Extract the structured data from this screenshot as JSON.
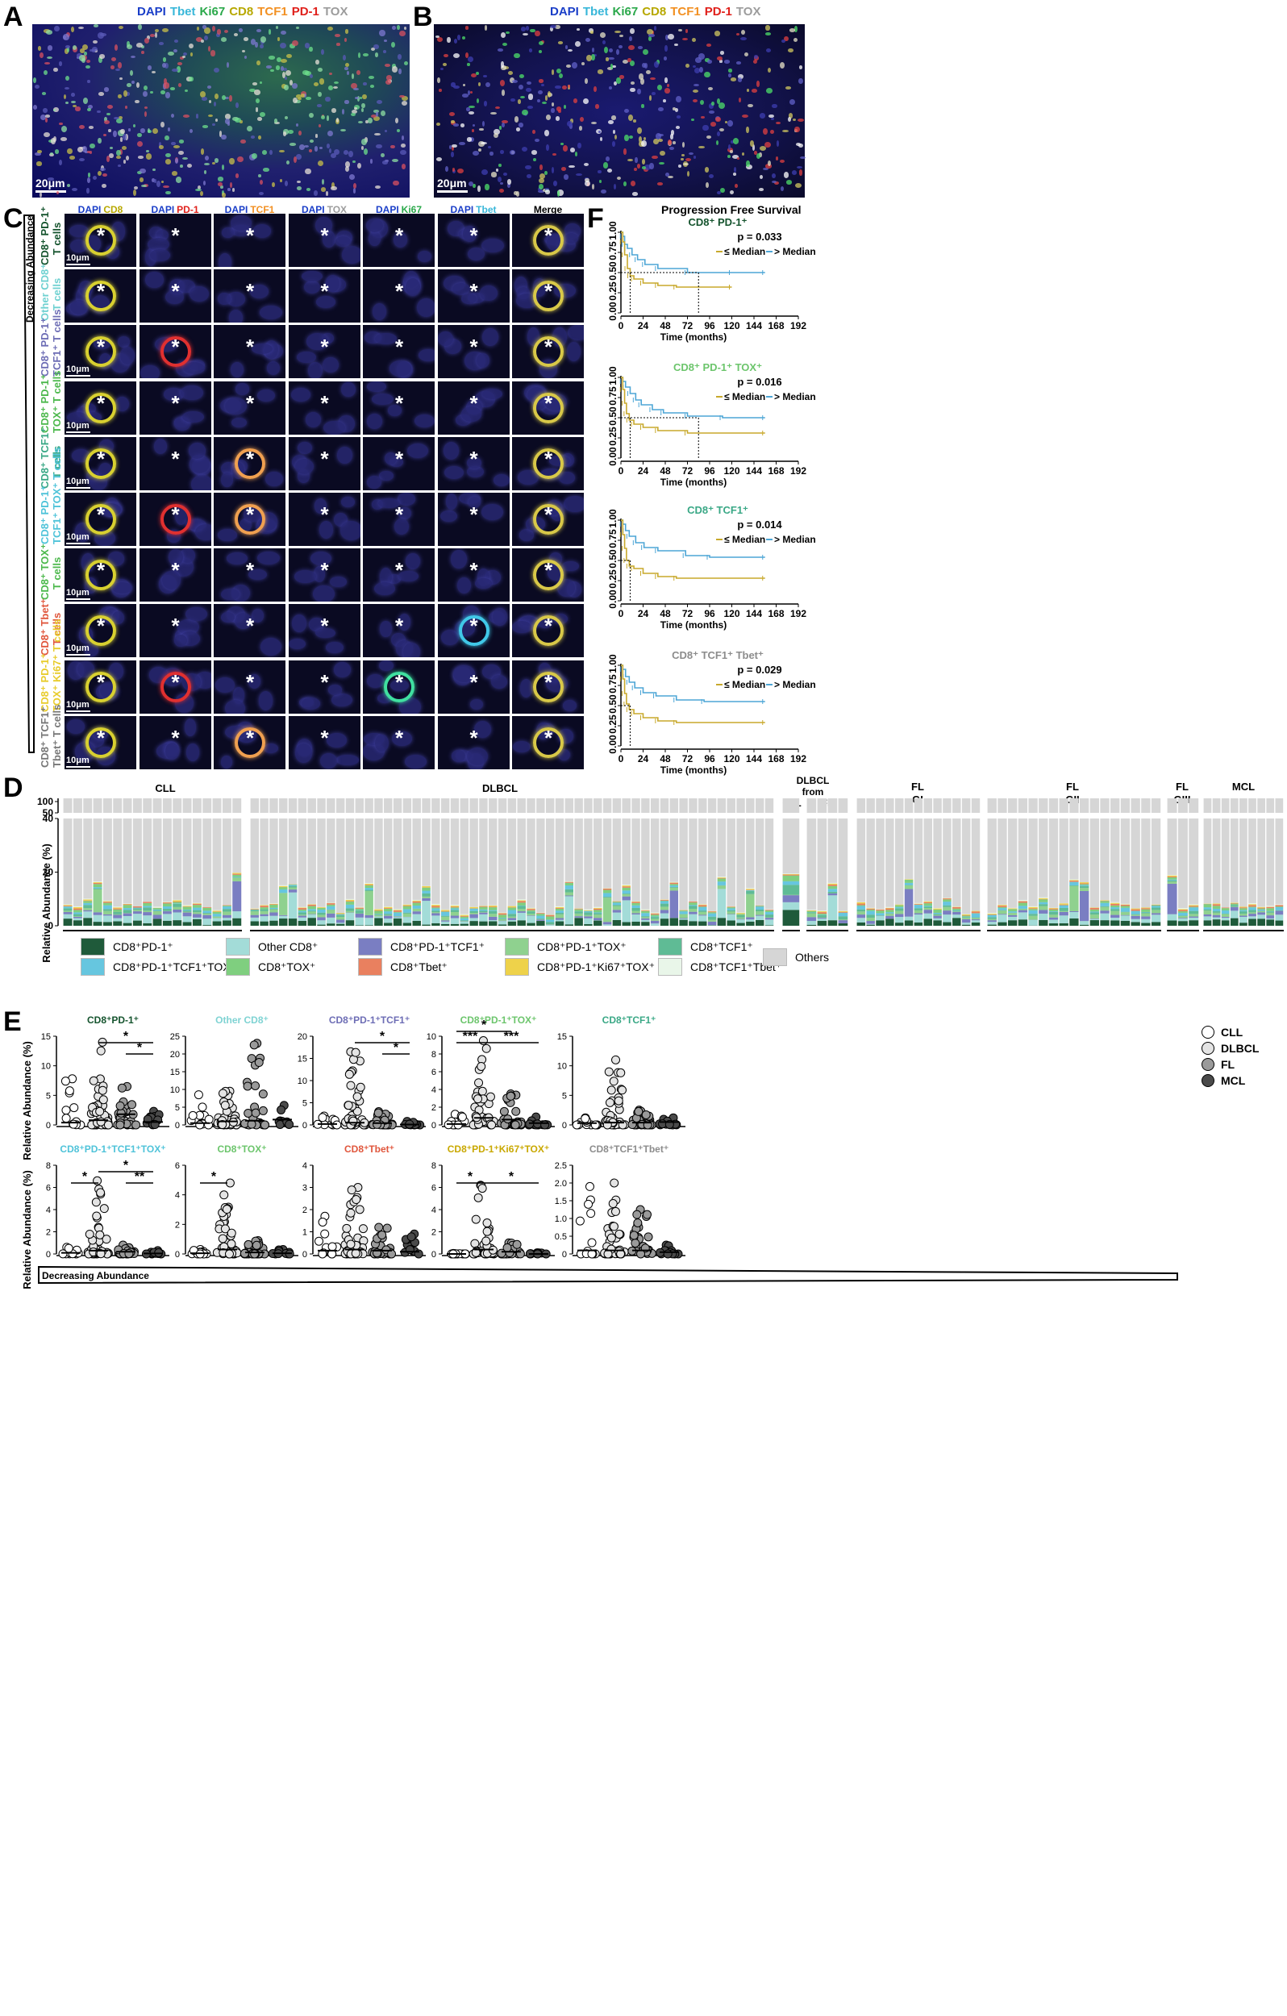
{
  "panelA": {
    "label": "A",
    "channels": [
      {
        "name": "DAPI",
        "color": "#1a3ec8"
      },
      {
        "name": "Tbet",
        "color": "#39b7d9"
      },
      {
        "name": "Ki67",
        "color": "#2aa84a"
      },
      {
        "name": "CD8",
        "color": "#b7a800"
      },
      {
        "name": "TCF1",
        "color": "#f29022"
      },
      {
        "name": "PD-1",
        "color": "#e0201b"
      },
      {
        "name": "TOX",
        "color": "#9c9c9c"
      }
    ],
    "scale": "20μm"
  },
  "panelB": {
    "label": "B",
    "scale": "20μm"
  },
  "panelC": {
    "label": "C",
    "side_label": "Decreasing Abundance",
    "scale": "10μm",
    "columns": [
      {
        "dapi": "DAPI",
        "marker": "CD8",
        "color": "#b7a800"
      },
      {
        "dapi": "DAPI",
        "marker": "PD-1",
        "color": "#e0201b"
      },
      {
        "dapi": "DAPI",
        "marker": "TCF1",
        "color": "#f29022"
      },
      {
        "dapi": "DAPI",
        "marker": "TOX",
        "color": "#9c9c9c"
      },
      {
        "dapi": "DAPI",
        "marker": "Ki67",
        "color": "#2aa84a"
      },
      {
        "dapi": "DAPI",
        "marker": "Tbet",
        "color": "#39b7d9"
      },
      {
        "dapi": "",
        "marker": "Merge",
        "color": "#000000"
      }
    ],
    "rows": [
      {
        "l1": "CD8⁺ PD-1⁺",
        "l2": "T cells",
        "color": "#14532d"
      },
      {
        "l1": "Other CD8⁺",
        "l2": "T cells",
        "color": "#6fd1d1"
      },
      {
        "l1": "CD8⁺ PD-1⁺",
        "l2": "TCF1⁺ T cells",
        "color": "#6d6db5"
      },
      {
        "l1": "CD8⁺ PD-1⁺",
        "l2": "TOX⁺ T cells",
        "color": "#4cb84c"
      },
      {
        "l1": "CD8⁺ TCF1⁺",
        "l2": "T cells",
        "color": "#3aa886"
      },
      {
        "l1": "CD8⁺ PD-1⁺",
        "l2": "TCF1⁺ TOX⁺ T cells",
        "color": "#4fc3d9"
      },
      {
        "l1": "CD8⁺ TOX⁺",
        "l2": "T cells",
        "color": "#4cb84c"
      },
      {
        "l1": "CD8⁺ Tbet⁺",
        "l2": "T cells",
        "color": "#e0563c"
      },
      {
        "l1": "CD8⁺ PD-1⁺",
        "l2": "TOX⁺ Ki67⁺ T cells",
        "color": "#e8cc2c"
      },
      {
        "l1": "CD8⁺ TCF1⁺",
        "l2": "Tbet⁺ T cells",
        "color": "#777777"
      }
    ]
  },
  "panelF": {
    "label": "F",
    "title": "Progression Free Survival",
    "xlabel": "Time (months)",
    "xticks": [
      "0",
      "24",
      "48",
      "72",
      "96",
      "120",
      "144",
      "168",
      "192"
    ],
    "yticks": [
      "0.00",
      "0.25",
      "0.50",
      "0.75",
      "1.00"
    ],
    "legend_low": "≤ Median",
    "legend_high": "> Median",
    "plots": [
      {
        "title": "CD8⁺ PD-1⁺",
        "title_color": "#14532d",
        "pvalue": "p = 0.033"
      },
      {
        "title": "CD8⁺ PD-1⁺ TOX⁺",
        "title_color": "#6cc56c",
        "pvalue": "p = 0.016"
      },
      {
        "title": "CD8⁺ TCF1⁺",
        "title_color": "#3aa886",
        "pvalue": "p = 0.014"
      },
      {
        "title": "CD8⁺ TCF1⁺ Tbet⁺",
        "title_color": "#8c8c8c",
        "pvalue": "p = 0.029"
      }
    ]
  },
  "panelD": {
    "label": "D",
    "ylabel": "Relative Abundance (%)",
    "groups": [
      {
        "name": "CLL",
        "n": 18
      },
      {
        "name": "DLBCL",
        "n": 55
      },
      {
        "name": "DLBCL from CLL",
        "n": 1
      },
      {
        "name": "DLBCL from FL",
        "n": 4
      },
      {
        "name": "FL GI",
        "n": 13
      },
      {
        "name": "FL GII",
        "n": 17
      },
      {
        "name": "FL GIII",
        "n": 3
      },
      {
        "name": "MCL",
        "n": 9
      }
    ],
    "group_labels": {
      "cll": "CLL",
      "dlbcl": "DLBCL",
      "dlbcl_from": "DLBCL",
      "from": "from",
      "from_cll": "CLL",
      "from_fl": "FL",
      "fl": "FL",
      "gi": "GI",
      "gii": "GII",
      "giii": "GIII",
      "mcl": "MCL"
    },
    "yticks_top": [
      "100",
      "50"
    ],
    "yticks_bottom": [
      "40",
      "20",
      "0"
    ],
    "legend": [
      {
        "label": "CD8⁺PD-1⁺",
        "color": "#1f5a3a"
      },
      {
        "label": "Other CD8⁺",
        "color": "#a3dcd8"
      },
      {
        "label": "CD8⁺PD-1⁺TCF1⁺",
        "color": "#7a7ec2"
      },
      {
        "label": "CD8⁺PD-1⁺TOX⁺",
        "color": "#8fd18f"
      },
      {
        "label": "CD8⁺TCF1⁺",
        "color": "#5fbb95"
      },
      {
        "label": "CD8⁺PD-1⁺TCF1⁺TOX⁺",
        "color": "#66c6df"
      },
      {
        "label": "CD8⁺TOX⁺",
        "color": "#7fcf7f"
      },
      {
        "label": "CD8⁺Tbet⁺",
        "color": "#e9805f"
      },
      {
        "label": "CD8⁺PD-1⁺Ki67⁺TOX⁺",
        "color": "#eed24a"
      },
      {
        "label": "CD8⁺TCF1⁺Tbet⁺",
        "color": "#e9f6e9"
      },
      {
        "label": "Others",
        "color": "#d6d6d6"
      }
    ]
  },
  "panelE": {
    "label": "E",
    "ylabel": "Relative Abundance (%)",
    "bottom_label": "Decreasing Abundance",
    "legend": [
      {
        "label": "CLL",
        "color": "#ffffff"
      },
      {
        "label": "DLBCL",
        "color": "#e4e4e4"
      },
      {
        "label": "FL",
        "color": "#9a9a9a"
      },
      {
        "label": "MCL",
        "color": "#4a4a4a"
      }
    ],
    "plots": [
      {
        "title": "CD8⁺PD-1⁺",
        "title_color": "#14532d",
        "ymax": 15,
        "yticks": [
          "0",
          "5",
          "10",
          "15"
        ],
        "medians": [
          0.4,
          0.8,
          1.8,
          0.5
        ],
        "maxes": [
          7.8,
          14,
          6.5,
          2.3
        ],
        "sig": [
          {
            "a": 1,
            "b": 3,
            "label": "*",
            "level": 2
          },
          {
            "a": 2,
            "b": 3,
            "label": "*",
            "level": 1
          }
        ]
      },
      {
        "title": "Other CD8⁺",
        "title_color": "#7fd3d3",
        "ymax": 25,
        "yticks": [
          "0",
          "5",
          "10",
          "15",
          "20",
          "25"
        ],
        "medians": [
          0.5,
          1.0,
          1.2,
          1.5
        ],
        "maxes": [
          8.5,
          9.5,
          23,
          5.5
        ],
        "sig": []
      },
      {
        "title": "CD8⁺PD-1⁺TCF1⁺",
        "title_color": "#6d6db5",
        "ymax": 20,
        "yticks": [
          "0",
          "5",
          "10",
          "15",
          "20"
        ],
        "medians": [
          0.2,
          0.5,
          0.4,
          0.1
        ],
        "maxes": [
          2,
          16.5,
          3,
          0.8
        ],
        "sig": [
          {
            "a": 1,
            "b": 3,
            "label": "*",
            "level": 2
          },
          {
            "a": 2,
            "b": 3,
            "label": "*",
            "level": 1
          }
        ]
      },
      {
        "title": "CD8⁺PD-1⁺TOX⁺",
        "title_color": "#6cc56c",
        "ymax": 10,
        "yticks": [
          "0",
          "2",
          "4",
          "6",
          "8",
          "10"
        ],
        "medians": [
          0.1,
          0.8,
          0.6,
          0.2
        ],
        "maxes": [
          1.2,
          9.5,
          3.5,
          0.9
        ],
        "sig": [
          {
            "a": 0,
            "b": 2,
            "label": "*",
            "level": 3
          },
          {
            "a": 0,
            "b": 1,
            "label": "***",
            "level": 2
          },
          {
            "a": 1,
            "b": 3,
            "label": "***",
            "level": 2
          }
        ]
      },
      {
        "title": "CD8⁺TCF1⁺",
        "title_color": "#3aa886",
        "ymax": 15,
        "yticks": [
          "0",
          "5",
          "10",
          "15"
        ],
        "medians": [
          0.3,
          0.4,
          0.4,
          0.5
        ],
        "maxes": [
          1.2,
          11,
          2.5,
          1.2
        ],
        "sig": []
      },
      {
        "title": "CD8⁺PD-1⁺TCF1⁺TOX⁺",
        "title_color": "#4fc3d9",
        "ymax": 8,
        "yticks": [
          "0",
          "2",
          "4",
          "6",
          "8"
        ],
        "medians": [
          0.1,
          0.3,
          0.2,
          0.05
        ],
        "maxes": [
          0.6,
          6.6,
          0.8,
          0.3
        ],
        "sig": [
          {
            "a": 0,
            "b": 1,
            "label": "*",
            "level": 1
          },
          {
            "a": 1,
            "b": 3,
            "label": "*",
            "level": 2
          },
          {
            "a": 2,
            "b": 3,
            "label": "**",
            "level": 1
          }
        ]
      },
      {
        "title": "CD8⁺TOX⁺",
        "title_color": "#6cc56c",
        "ymax": 6,
        "yticks": [
          "0",
          "2",
          "4",
          "6"
        ],
        "medians": [
          0.05,
          0.3,
          0.1,
          0.05
        ],
        "maxes": [
          0.3,
          4.8,
          0.9,
          0.3
        ],
        "sig": [
          {
            "a": 0,
            "b": 1,
            "label": "*",
            "level": 1
          }
        ]
      },
      {
        "title": "CD8⁺Tbet⁺",
        "title_color": "#e0563c",
        "ymax": 4,
        "yticks": [
          "0",
          "1",
          "2",
          "3",
          "4"
        ],
        "medians": [
          0.15,
          0.2,
          0.15,
          0.1
        ],
        "maxes": [
          1.7,
          3.0,
          1.2,
          0.9
        ],
        "sig": []
      },
      {
        "title": "CD8⁺PD-1⁺Ki67⁺TOX⁺",
        "title_color": "#c9a800",
        "ymax": 8,
        "yticks": [
          "0",
          "2",
          "4",
          "6",
          "8"
        ],
        "medians": [
          0.0,
          0.4,
          0.2,
          0.0
        ],
        "maxes": [
          0.05,
          6.2,
          1.0,
          0.1
        ],
        "sig": [
          {
            "a": 0,
            "b": 1,
            "label": "*",
            "level": 1
          },
          {
            "a": 1,
            "b": 3,
            "label": "*",
            "level": 1
          }
        ]
      },
      {
        "title": "CD8⁺TCF1⁺Tbet⁺",
        "title_color": "#8c8c8c",
        "ymax": 2.5,
        "yticks": [
          "0",
          "0.5",
          "1.0",
          "1.5",
          "2.0",
          "2.5"
        ],
        "medians": [
          0.1,
          0.1,
          0.1,
          0.05
        ],
        "maxes": [
          1.9,
          2.0,
          1.25,
          0.25
        ],
        "sig": []
      }
    ]
  }
}
